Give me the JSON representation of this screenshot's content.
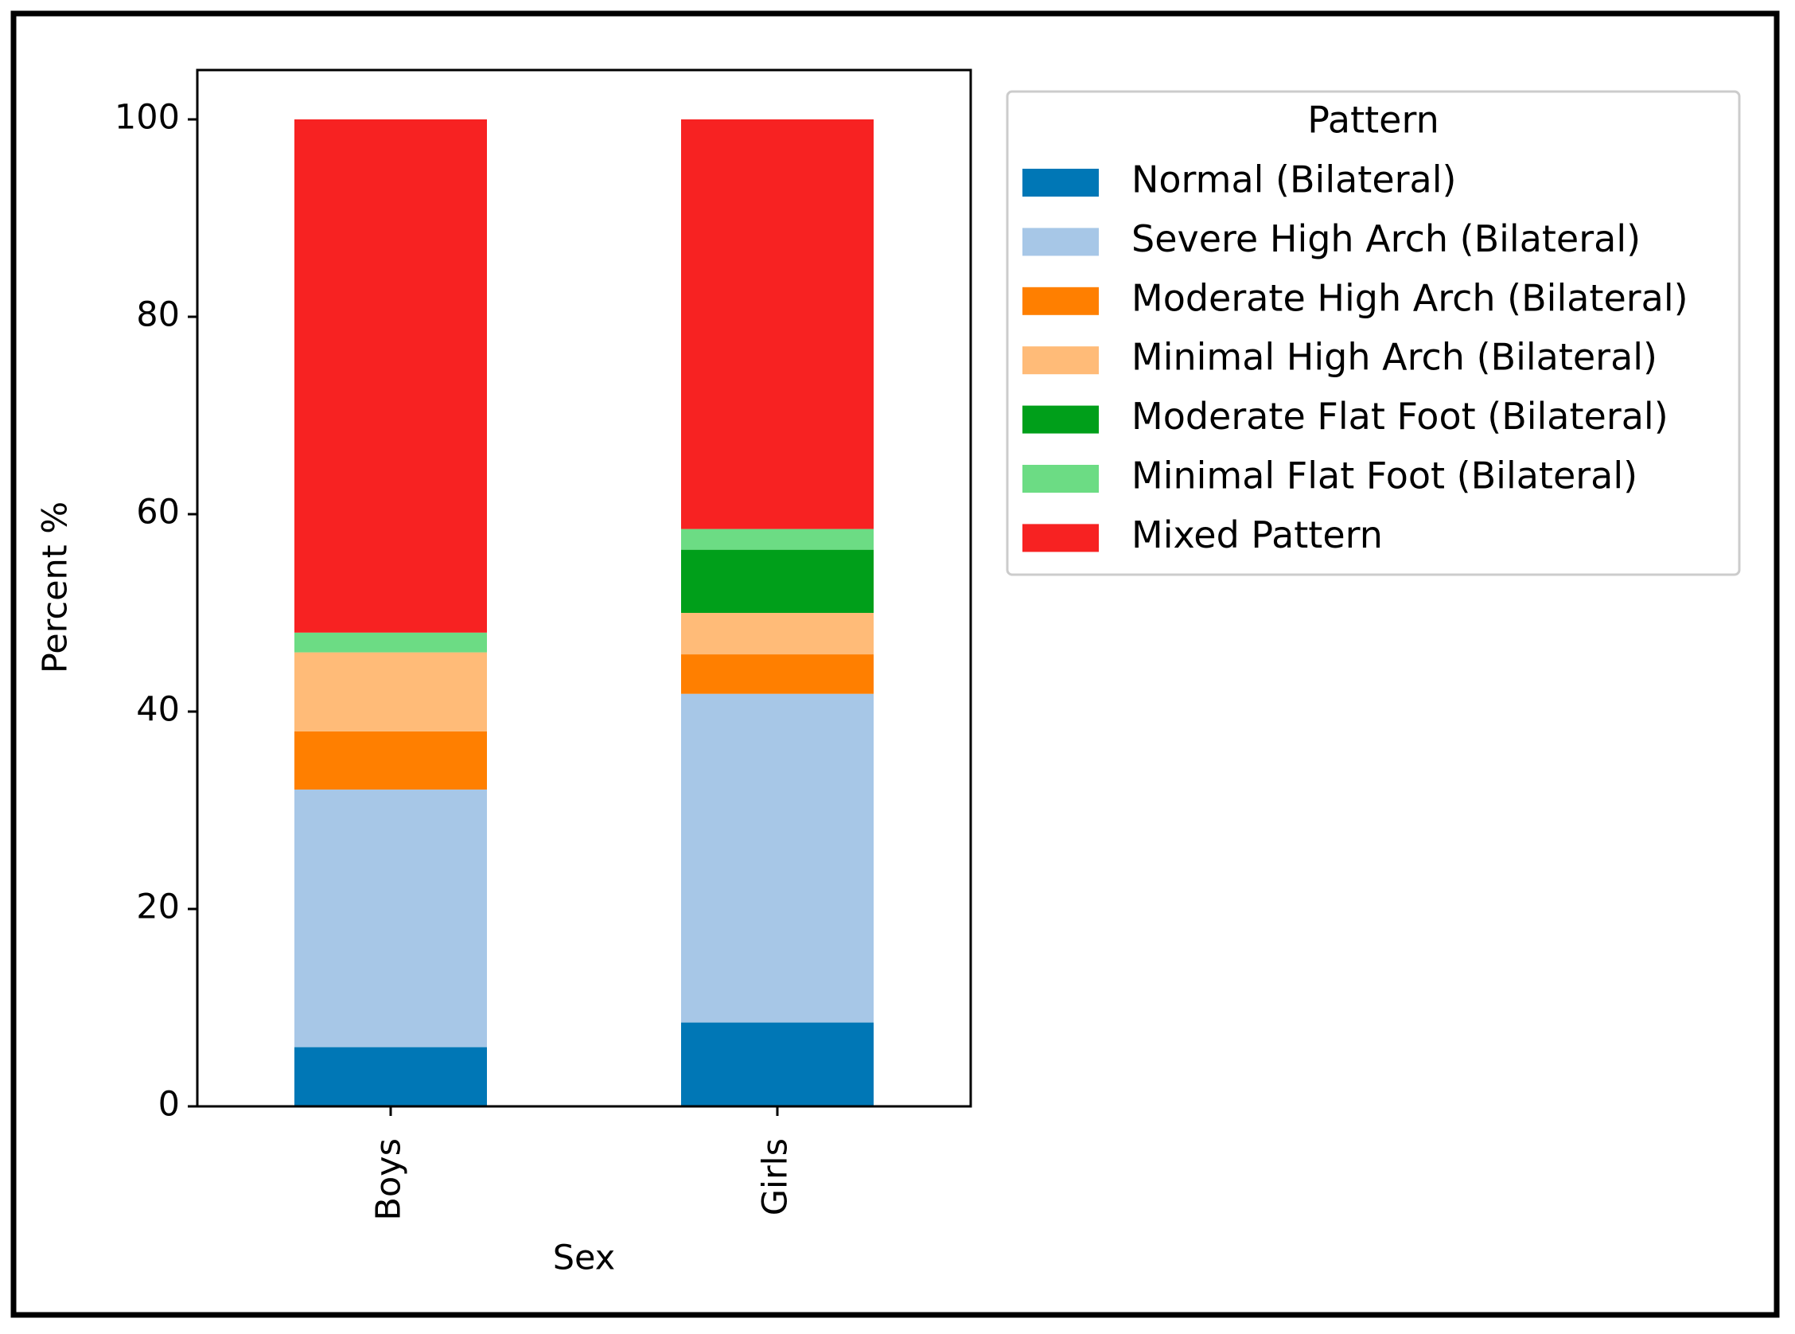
{
  "chart_data": {
    "type": "stacked_bar",
    "x_label": "Sex",
    "y_label": "Percent %",
    "categories": [
      "Boys",
      "Girls"
    ],
    "series": [
      {
        "name": "Normal (Bilateral)",
        "color": "#0077b6",
        "values": [
          6.0,
          8.5
        ]
      },
      {
        "name": "Severe High Arch (Bilateral)",
        "color": "#a7c7e7",
        "values": [
          26.1,
          33.3
        ]
      },
      {
        "name": "Moderate High Arch (Bilateral)",
        "color": "#ff7f00",
        "values": [
          5.9,
          4.0
        ]
      },
      {
        "name": "Minimal High Arch (Bilateral)",
        "color": "#ffbb78",
        "values": [
          8.0,
          4.2
        ]
      },
      {
        "name": "Moderate Flat Foot (Bilateral)",
        "color": "#009f1a",
        "values": [
          0,
          6.4
        ]
      },
      {
        "name": "Minimal Flat Foot (Bilateral)",
        "color": "#6cdc84",
        "values": [
          2.0,
          2.1
        ]
      },
      {
        "name": "Mixed Pattern",
        "color": "#f72222",
        "values": [
          52.0,
          41.5
        ]
      }
    ],
    "legend_title": "Pattern",
    "legend_position": "outside right",
    "ylim": [
      0,
      105
    ],
    "yticks": [
      0,
      20,
      40,
      60,
      80,
      100
    ],
    "grid": false
  }
}
